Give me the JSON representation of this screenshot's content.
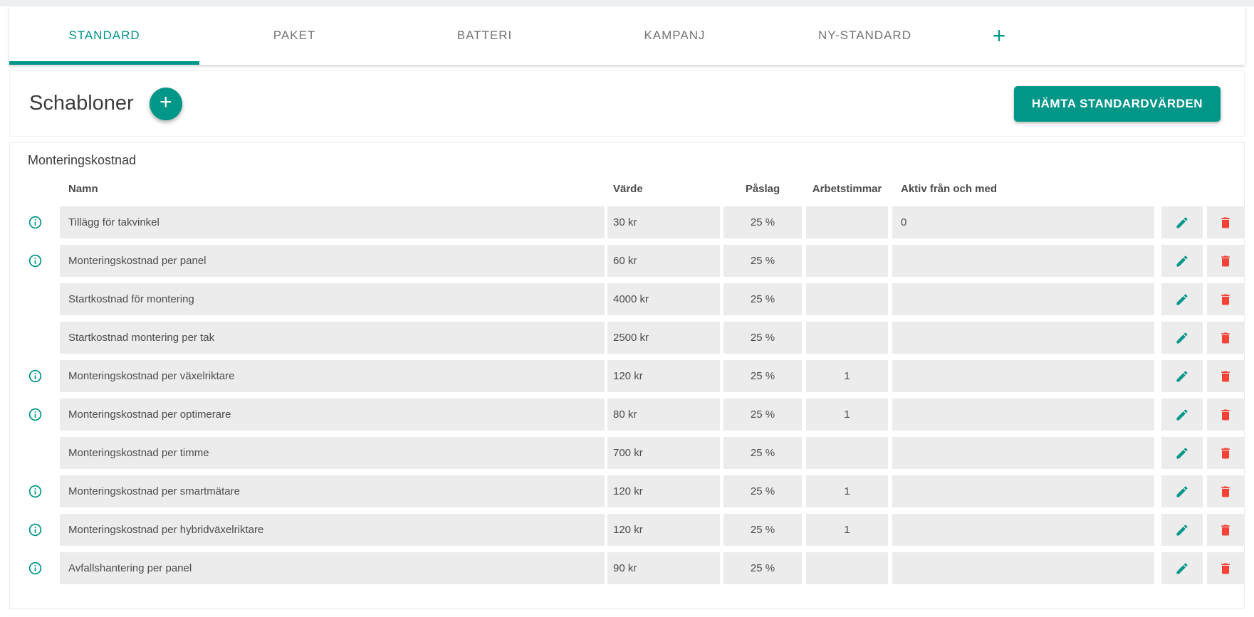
{
  "tabs": {
    "items": [
      {
        "label": "STANDARD",
        "active": true
      },
      {
        "label": "PAKET",
        "active": false
      },
      {
        "label": "BATTERI",
        "active": false
      },
      {
        "label": "KAMPANJ",
        "active": false
      },
      {
        "label": "NY-STANDARD",
        "active": false
      }
    ],
    "add_label": "+"
  },
  "header": {
    "title": "Schabloner",
    "add_button_label": "+",
    "fetch_button_label": "HÄMTA STANDARDVÄRDEN"
  },
  "table": {
    "section_title": "Monteringskostnad",
    "columns": {
      "name": "Namn",
      "value": "Värde",
      "markup": "Påslag",
      "hours": "Arbetstimmar",
      "active_from": "Aktiv från och med"
    },
    "rows": [
      {
        "info": true,
        "name": "Tillägg för takvinkel",
        "value": "30 kr",
        "markup": "25 %",
        "hours": "",
        "active_from": "0"
      },
      {
        "info": true,
        "name": "Monteringskostnad per panel",
        "value": "60 kr",
        "markup": "25 %",
        "hours": "",
        "active_from": ""
      },
      {
        "info": false,
        "name": "Startkostnad för montering",
        "value": "4000 kr",
        "markup": "25 %",
        "hours": "",
        "active_from": ""
      },
      {
        "info": false,
        "name": "Startkostnad montering per tak",
        "value": "2500 kr",
        "markup": "25 %",
        "hours": "",
        "active_from": ""
      },
      {
        "info": true,
        "name": "Monteringskostnad per växelriktare",
        "value": "120 kr",
        "markup": "25 %",
        "hours": "1",
        "active_from": ""
      },
      {
        "info": true,
        "name": "Monteringskostnad per optimerare",
        "value": "80 kr",
        "markup": "25 %",
        "hours": "1",
        "active_from": ""
      },
      {
        "info": false,
        "name": "Monteringskostnad per timme",
        "value": "700 kr",
        "markup": "25 %",
        "hours": "",
        "active_from": ""
      },
      {
        "info": true,
        "name": "Monteringskostnad per smartmätare",
        "value": "120 kr",
        "markup": "25 %",
        "hours": "1",
        "active_from": ""
      },
      {
        "info": true,
        "name": "Monteringskostnad per hybridväxelriktare",
        "value": "120 kr",
        "markup": "25 %",
        "hours": "1",
        "active_from": ""
      },
      {
        "info": true,
        "name": "Avfallshantering per panel",
        "value": "90 kr",
        "markup": "25 %",
        "hours": "",
        "active_from": ""
      }
    ]
  },
  "icons": {
    "info": "info-icon",
    "edit": "edit-icon",
    "delete": "delete-icon",
    "add": "plus-icon"
  },
  "colors": {
    "accent": "#009688",
    "danger": "#f44336",
    "row_bg": "#ececec",
    "inactive_tab": "#757575"
  }
}
